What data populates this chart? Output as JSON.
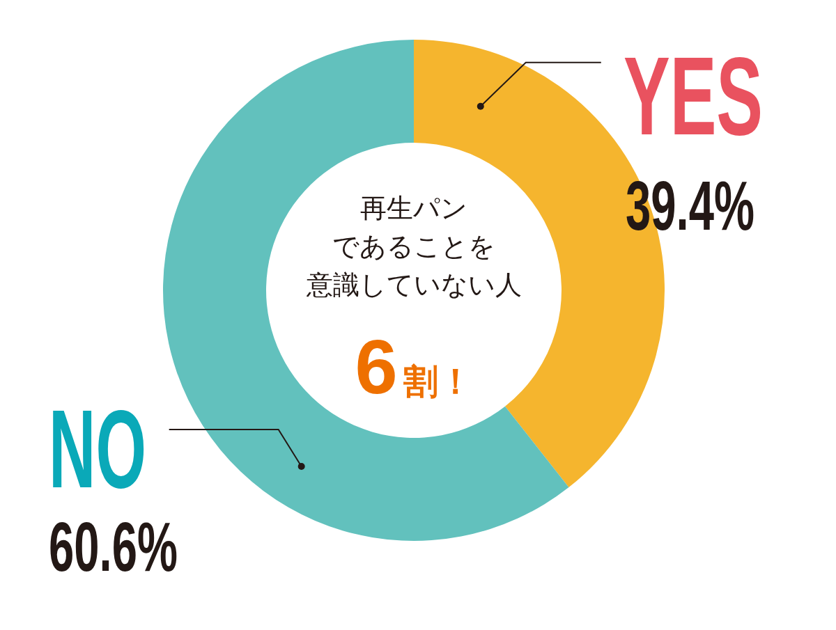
{
  "chart_data": {
    "type": "donut",
    "categories": [
      "YES",
      "NO"
    ],
    "values": [
      39.4,
      60.6
    ],
    "colors": [
      "#f5b52e",
      "#62c1bd"
    ],
    "value_labels": [
      "39.4%",
      "60.6%"
    ],
    "annotations": [
      "再生パン",
      "であることを",
      "意識していない人",
      "6割！"
    ]
  }
}
